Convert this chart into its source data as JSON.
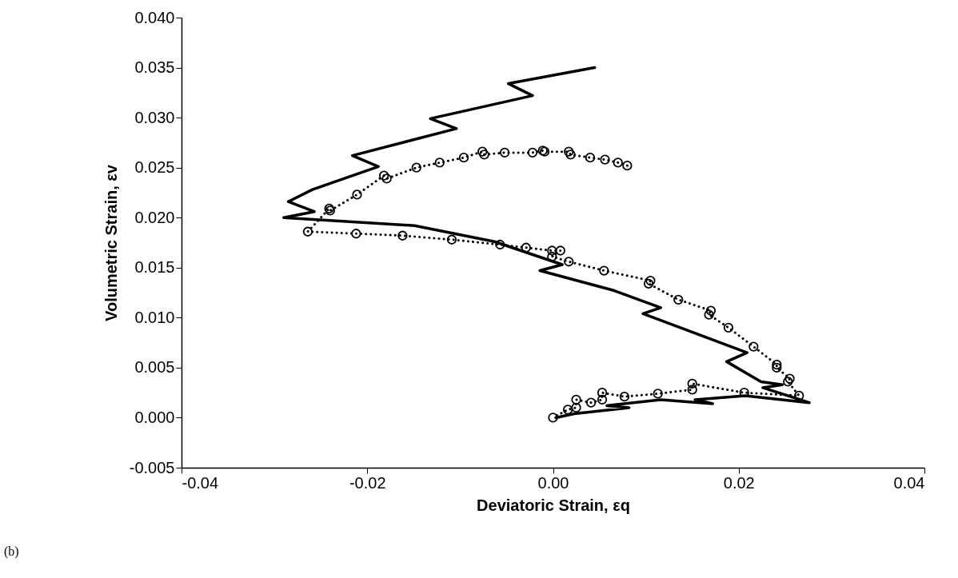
{
  "chart_data": {
    "type": "line",
    "xlabel": "Deviatoric Strain, εq",
    "ylabel": "Volumetric Strain, εv",
    "annotations": [
      "(b)"
    ],
    "xlim": [
      -0.04,
      0.04
    ],
    "ylim": [
      -0.005,
      0.04
    ],
    "xticks": [
      -0.04,
      -0.02,
      {
        "value": 0,
        "label": "0.00"
      },
      0.02,
      0.04
    ],
    "yticks": [
      {
        "value": -0.005,
        "label": "-0.005"
      },
      {
        "value": 0,
        "label": "0.000"
      },
      {
        "value": 0.005,
        "label": "0.005"
      },
      {
        "value": 0.01,
        "label": "0.010"
      },
      {
        "value": 0.015,
        "label": "0.015"
      },
      {
        "value": 0.02,
        "label": "0.020"
      },
      {
        "value": 0.025,
        "label": "0.025"
      },
      {
        "value": 0.03,
        "label": "0.030"
      },
      {
        "value": 0.035,
        "label": "0.035"
      },
      {
        "value": 0.04,
        "label": "0.040"
      }
    ],
    "grid": false,
    "series": [
      {
        "color": "#000000",
        "line_style": "solid",
        "marker": "none",
        "x": [
          0.0045,
          -0.0048,
          -0.0022,
          -0.0132,
          -0.0104,
          -0.0216,
          -0.0188,
          -0.0259,
          -0.0285,
          -0.0257,
          -0.029,
          -0.0149,
          -0.0063,
          0.001,
          -0.0014,
          0.0066,
          0.0116,
          0.0097,
          0.0209,
          0.0187,
          0.0224,
          0.0247,
          0.0226,
          0.0276,
          0.0207,
          0.0153,
          0.0172,
          0.0116,
          0.0058,
          0.0082,
          0.0023,
          0.0003
        ],
        "values": [
          0.035,
          0.0334,
          0.0322,
          0.0299,
          0.0289,
          0.0262,
          0.0251,
          0.0228,
          0.0216,
          0.0206,
          0.02,
          0.0192,
          0.0176,
          0.0153,
          0.0147,
          0.0127,
          0.011,
          0.0104,
          0.0065,
          0.0056,
          0.0036,
          0.0033,
          0.003,
          0.0015,
          0.0022,
          0.0018,
          0.0014,
          0.0018,
          0.0012,
          0.001,
          0.0004,
          0.0
        ]
      },
      {
        "color": "#000000",
        "line_style": "dotted",
        "marker": "circle",
        "x": [
          0.008,
          0.007,
          0.0056,
          0.004,
          0.0019,
          0.0017,
          -0.0009,
          -0.0011,
          -0.0022,
          -0.0052,
          -0.0074,
          -0.0076,
          -0.0096,
          -0.0122,
          -0.0147,
          -0.0179,
          -0.0182,
          -0.0211,
          -0.024,
          -0.0241,
          -0.0264,
          -0.0212,
          -0.0162,
          -0.0109,
          -0.0057,
          -0.0029,
          -0.0001,
          0.0008,
          -0.0001,
          0.0017,
          0.0055,
          0.0105,
          0.0103,
          0.0135,
          0.017,
          0.0168,
          0.0189,
          0.0216,
          0.0241,
          0.0241,
          0.0255,
          0.0253,
          0.0265,
          0.0206,
          0.015,
          0.015,
          0.0113,
          0.0077,
          0.0053,
          0.0053,
          0.0041,
          0.0025,
          0.0025,
          0.0016,
          0.0
        ],
        "values": [
          0.0252,
          0.0255,
          0.0258,
          0.026,
          0.0263,
          0.0266,
          0.0266,
          0.0267,
          0.0265,
          0.0265,
          0.0263,
          0.0266,
          0.026,
          0.0255,
          0.025,
          0.0239,
          0.0242,
          0.0223,
          0.0207,
          0.0209,
          0.0186,
          0.0184,
          0.0182,
          0.0178,
          0.0173,
          0.017,
          0.0167,
          0.0167,
          0.0161,
          0.0156,
          0.0147,
          0.0137,
          0.0134,
          0.0118,
          0.0107,
          0.0103,
          0.009,
          0.0071,
          0.0053,
          0.005,
          0.0039,
          0.0036,
          0.0022,
          0.0025,
          0.0034,
          0.0028,
          0.0024,
          0.0021,
          0.0025,
          0.0018,
          0.0015,
          0.0018,
          0.001,
          0.0008,
          0.0
        ]
      }
    ]
  }
}
